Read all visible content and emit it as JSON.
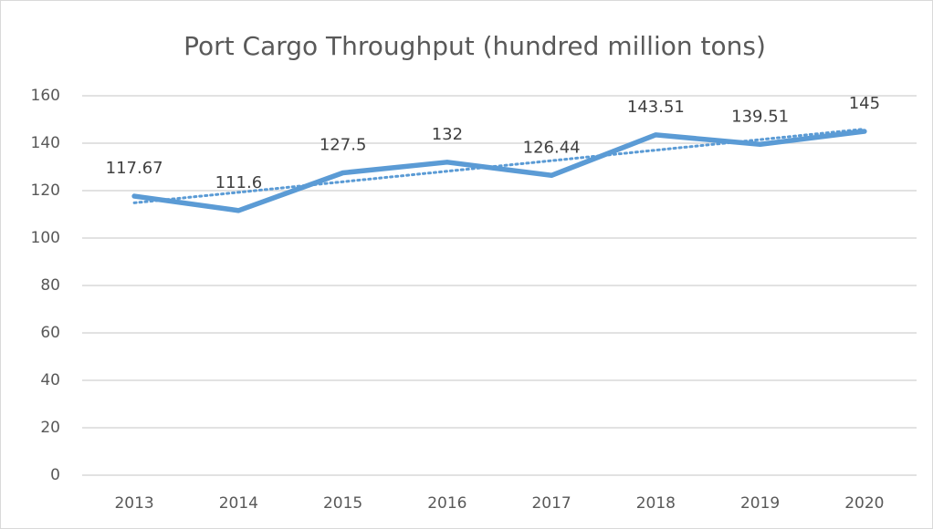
{
  "chart_data": {
    "type": "line",
    "title": "Port Cargo Throughput (hundred million tons)",
    "categories": [
      "2013",
      "2014",
      "2015",
      "2016",
      "2017",
      "2018",
      "2019",
      "2020"
    ],
    "series": [
      {
        "name": "Port Cargo Throughput",
        "color": "#5b9bd5",
        "values": [
          117.67,
          111.6,
          127.5,
          132,
          126.44,
          143.51,
          139.51,
          145
        ]
      }
    ],
    "ylim": [
      0,
      160
    ],
    "yticks": [
      0,
      20,
      40,
      60,
      80,
      100,
      120,
      140,
      160
    ],
    "grid": true,
    "trendline": "linear",
    "data_labels": true
  }
}
